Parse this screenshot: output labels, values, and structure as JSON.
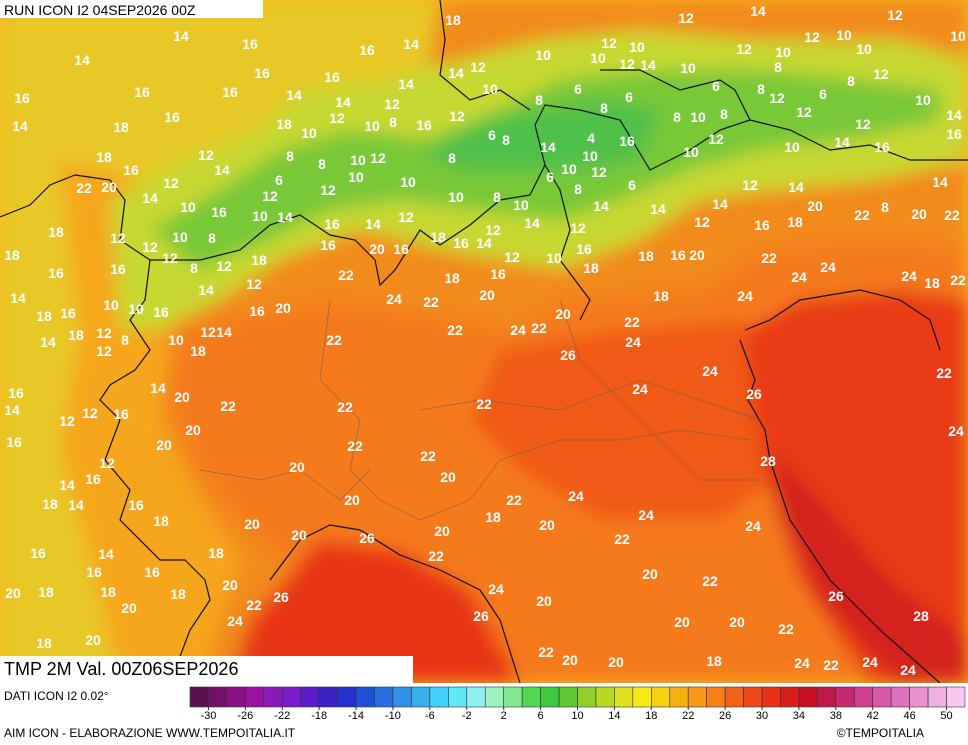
{
  "header": "RUN ICON I2 04SEP2026 00Z",
  "title": "TMP 2M Val. 00Z06SEP2026",
  "source": "DATI ICON I2 0.02°",
  "footer": "AIM ICON - ELABORAZIONE WWW.TEMPOITALIA.IT",
  "copyright": "©TEMPOITALIA",
  "colorbar": {
    "clim": [
      -32,
      52
    ],
    "ticks": [
      -30,
      -26,
      -22,
      -18,
      -14,
      -10,
      -6,
      -2,
      2,
      6,
      10,
      14,
      18,
      22,
      26,
      30,
      34,
      38,
      42,
      46,
      50
    ],
    "colors": [
      "#5c1050",
      "#74106a",
      "#8a1286",
      "#9a14a4",
      "#8a1ab8",
      "#7a1cc8",
      "#5a1cc8",
      "#3c20c8",
      "#2430d0",
      "#2050d8",
      "#2870e0",
      "#3090e8",
      "#38b0f0",
      "#40d0f8",
      "#60e8f8",
      "#90f0f0",
      "#a0f0c0",
      "#80e890",
      "#50d850",
      "#40c840",
      "#60c830",
      "#90d028",
      "#b8d820",
      "#e0e020",
      "#f8e818",
      "#f8d010",
      "#f8b010",
      "#f89818",
      "#f88018",
      "#f46018",
      "#f04818",
      "#e83018",
      "#d82018",
      "#c81020",
      "#c01848",
      "#c82870",
      "#d04090",
      "#d858a8",
      "#e070c0",
      "#e890d0",
      "#f0b0e0",
      "#f8c8f0"
    ]
  },
  "temperature_labels": [
    18,
    14,
    16,
    16,
    14,
    10,
    12,
    10,
    12,
    14,
    12,
    10,
    10,
    12,
    10,
    12,
    10,
    14,
    16,
    16,
    14,
    14,
    12,
    10,
    10,
    12,
    14,
    10,
    8,
    12,
    16,
    16,
    16,
    14,
    14,
    12,
    8,
    6,
    6,
    6,
    8,
    12,
    12,
    6,
    8,
    10,
    14,
    18,
    16,
    18,
    10,
    12,
    10,
    8,
    16,
    12,
    8,
    8,
    10,
    8,
    12,
    14,
    18,
    16,
    12,
    8,
    8,
    10,
    12,
    8,
    6,
    8,
    14,
    4,
    16,
    10,
    10,
    12,
    10,
    12,
    10,
    14,
    16,
    16,
    22,
    20,
    12,
    14,
    6,
    12,
    10,
    10,
    6,
    8,
    6,
    12,
    14,
    14,
    18,
    14,
    10,
    16,
    12,
    10,
    14,
    10,
    8,
    10,
    14,
    14,
    12,
    14,
    20,
    22,
    8,
    20,
    22,
    18,
    12,
    12,
    10,
    8,
    16,
    14,
    12,
    18,
    16,
    14,
    12,
    14,
    12,
    16,
    18,
    16,
    20,
    16,
    18,
    16,
    16,
    12,
    8,
    12,
    18,
    16,
    22,
    20,
    16,
    18,
    16,
    12,
    10,
    18,
    22,
    24,
    24,
    24,
    18,
    22,
    14,
    10,
    10,
    16,
    14,
    12,
    24,
    22,
    20,
    18,
    24,
    18,
    16,
    14,
    18,
    12,
    12,
    8,
    10,
    12,
    14,
    18,
    16,
    20,
    22,
    22,
    24,
    22,
    20,
    22,
    24,
    26,
    16,
    14,
    20,
    14,
    12,
    16,
    22,
    22,
    22,
    24,
    24,
    26,
    22,
    16,
    12,
    12,
    20,
    20,
    22,
    22,
    24,
    20,
    20,
    28,
    14,
    16,
    18,
    14,
    16,
    18,
    20,
    22,
    24,
    20,
    20,
    20,
    18,
    20,
    24,
    22,
    24,
    26,
    16,
    14,
    18,
    22,
    16,
    16,
    20,
    22,
    20,
    18,
    18,
    20,
    18,
    20,
    26,
    22,
    24,
    24,
    20,
    26,
    26,
    20,
    20,
    22,
    28,
    18,
    20,
    22,
    20,
    20,
    18,
    24,
    22,
    24,
    24
  ]
}
